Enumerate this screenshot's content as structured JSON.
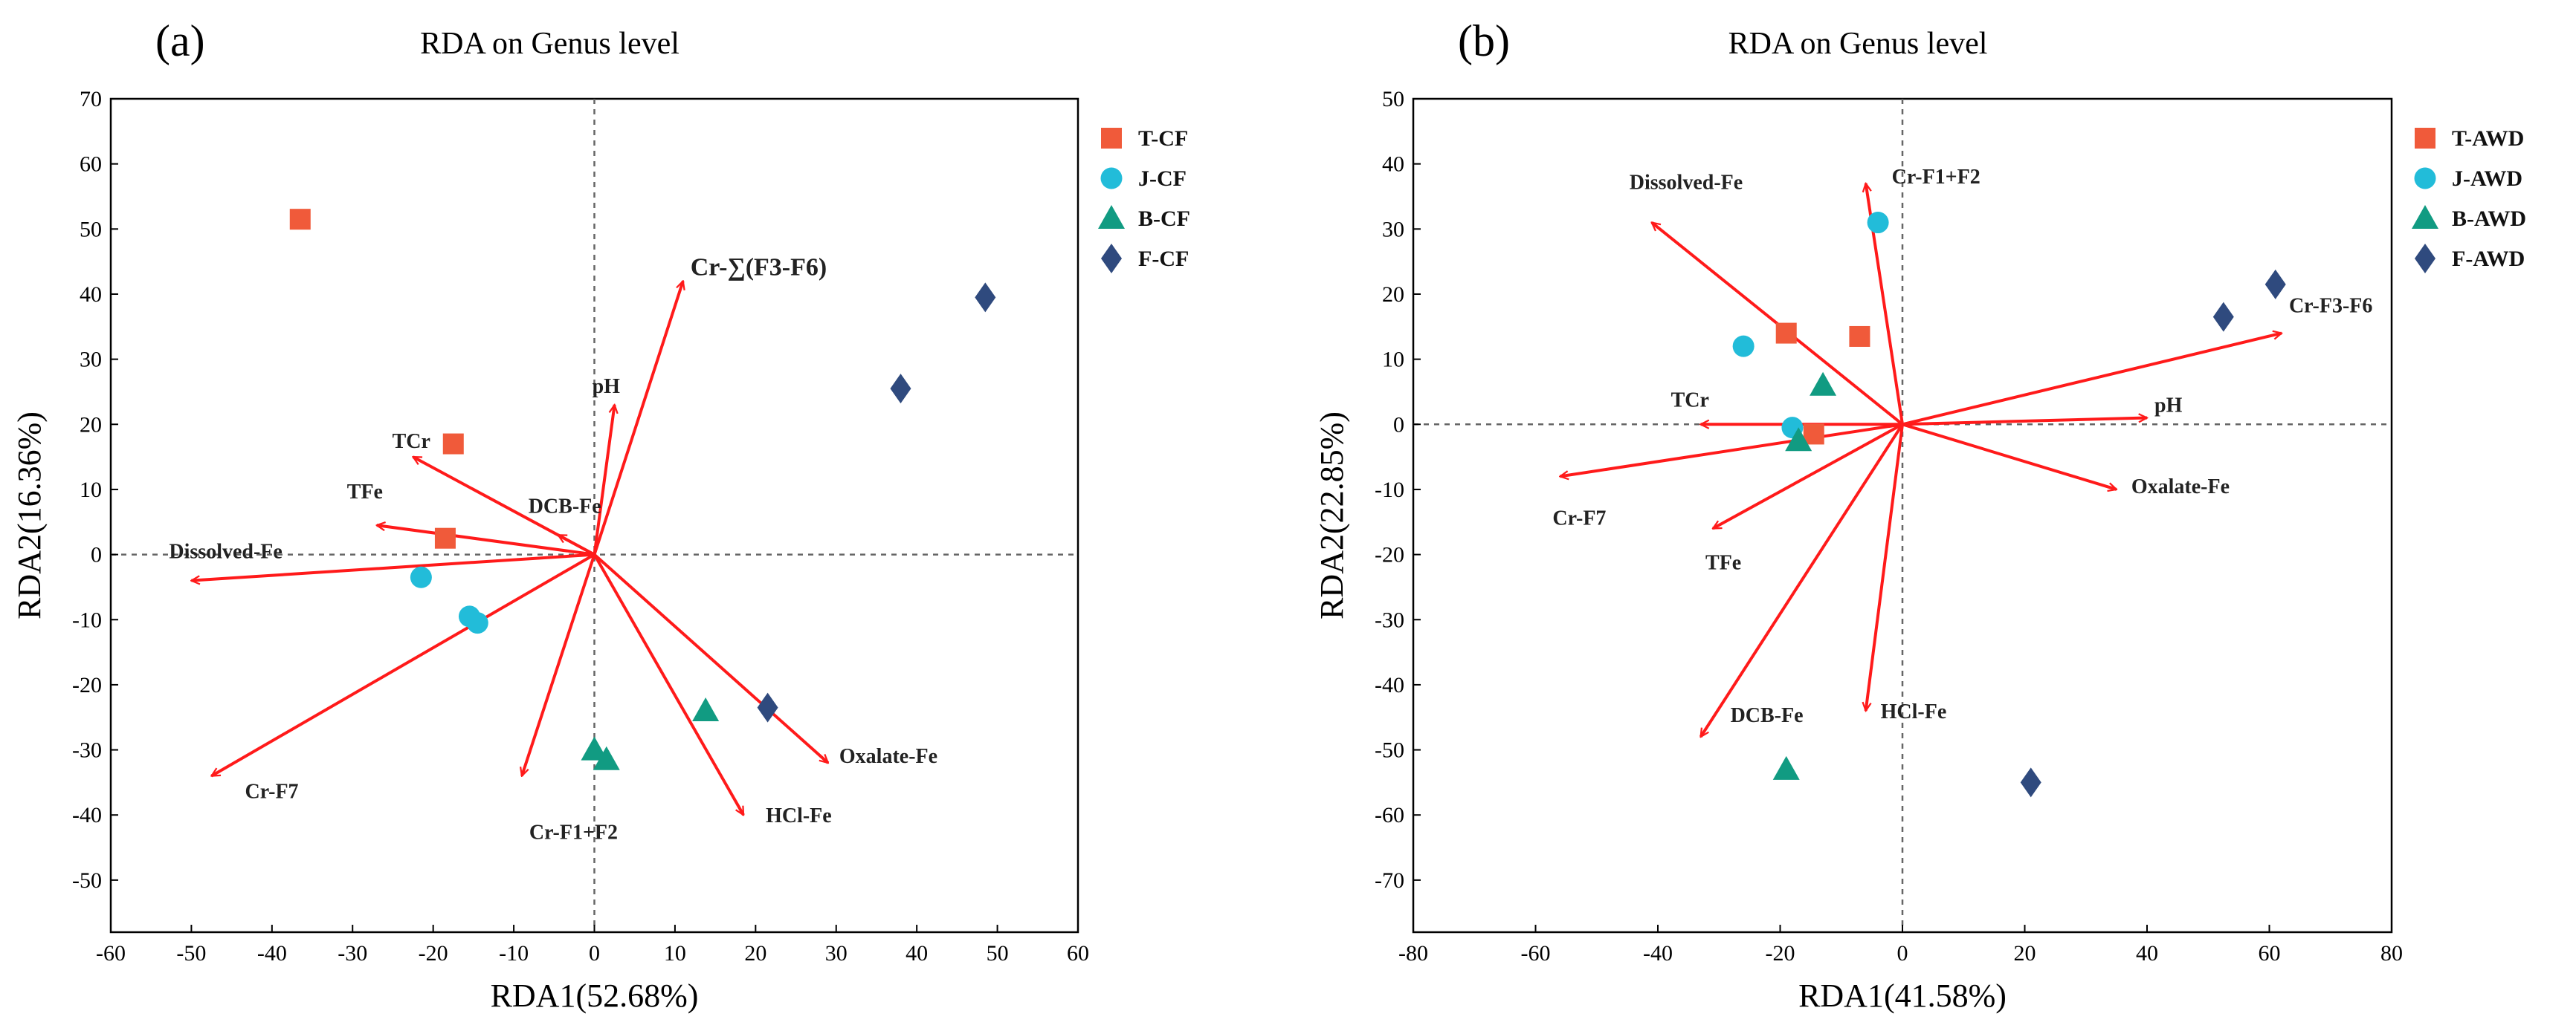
{
  "chart_data": [
    {
      "type": "scatter",
      "panel_label": "(a)",
      "title": "RDA on Genus level",
      "xlabel": "RDA1(52.68%)",
      "ylabel": "RDA2(16.36%)",
      "xlim": [
        -60,
        60
      ],
      "ylim": [
        -58,
        70
      ],
      "xticks": [
        -60,
        -50,
        -40,
        -30,
        -20,
        -10,
        0,
        10,
        20,
        30,
        40,
        50,
        60
      ],
      "yticks": [
        -50,
        -40,
        -30,
        -20,
        -10,
        0,
        10,
        20,
        30,
        40,
        50,
        60,
        70
      ],
      "series": [
        {
          "name": "T-CF",
          "marker": "square",
          "color": "#F05A3A",
          "points": [
            [
              -36.5,
              51.5
            ],
            [
              -17.5,
              17
            ],
            [
              -18.5,
              2.5
            ]
          ]
        },
        {
          "name": "J-CF",
          "marker": "circle",
          "color": "#22BCD9",
          "points": [
            [
              -21.5,
              -3.5
            ],
            [
              -15.5,
              -9.5
            ],
            [
              -14.5,
              -10.5
            ]
          ]
        },
        {
          "name": "B-CF",
          "marker": "triangle",
          "color": "#119B82",
          "points": [
            [
              0,
              -30
            ],
            [
              1.5,
              -31.5
            ],
            [
              13.8,
              -24
            ]
          ]
        },
        {
          "name": "F-CF",
          "marker": "diamond",
          "color": "#2F4A7E",
          "points": [
            [
              21.5,
              -23.5
            ],
            [
              38,
              25.5
            ],
            [
              48.5,
              39.5
            ]
          ]
        }
      ],
      "vectors": [
        {
          "name": "Cr-∑(F3-F6)",
          "x": 11,
          "y": 42
        },
        {
          "name": "pH",
          "x": 2.5,
          "y": 23
        },
        {
          "name": "TCr",
          "x": -22.5,
          "y": 15
        },
        {
          "name": "TFe",
          "x": -27,
          "y": 4.5
        },
        {
          "name": "DCB-Fe",
          "x": -4.5,
          "y": 3
        },
        {
          "name": "Dissolved-Fe",
          "x": -50,
          "y": -4
        },
        {
          "name": "Cr-F7",
          "x": -47.5,
          "y": -34
        },
        {
          "name": "Cr-F1+F2",
          "x": -9,
          "y": -34
        },
        {
          "name": "HCl-Fe",
          "x": 18.5,
          "y": -40
        },
        {
          "name": "Oxalate-Fe",
          "x": 29,
          "y": -32
        }
      ],
      "legend_position": "right"
    },
    {
      "type": "scatter",
      "panel_label": "(b)",
      "title": "RDA on Genus level",
      "xlabel": "RDA1(41.58%)",
      "ylabel": "RDA2(22.85%)",
      "xlim": [
        -80,
        80
      ],
      "ylim": [
        -78,
        50
      ],
      "xticks": [
        -80,
        -60,
        -40,
        -20,
        0,
        20,
        40,
        60,
        80
      ],
      "yticks": [
        -70,
        -60,
        -50,
        -40,
        -30,
        -20,
        -10,
        0,
        10,
        20,
        30,
        40,
        50
      ],
      "series": [
        {
          "name": "T-AWD",
          "marker": "square",
          "color": "#F05A3A",
          "points": [
            [
              -19,
              14
            ],
            [
              -7,
              13.5
            ],
            [
              -14.5,
              -1.5
            ]
          ]
        },
        {
          "name": "J-AWD",
          "marker": "circle",
          "color": "#22BCD9",
          "points": [
            [
              -4,
              31
            ],
            [
              -26,
              12
            ],
            [
              -18,
              -0.5
            ]
          ]
        },
        {
          "name": "B-AWD",
          "marker": "triangle",
          "color": "#119B82",
          "points": [
            [
              -13,
              6
            ],
            [
              -17,
              -2.5
            ],
            [
              -19,
              -53
            ]
          ]
        },
        {
          "name": "F-AWD",
          "marker": "diamond",
          "color": "#2F4A7E",
          "points": [
            [
              52.5,
              16.5
            ],
            [
              61,
              21.5
            ],
            [
              21,
              -55
            ]
          ]
        }
      ],
      "vectors": [
        {
          "name": "Cr-F1+F2",
          "x": -6,
          "y": 37
        },
        {
          "name": "Dissolved-Fe",
          "x": -41,
          "y": 31
        },
        {
          "name": "Cr-F3-F6",
          "x": 62,
          "y": 14
        },
        {
          "name": "pH",
          "x": 40,
          "y": 1
        },
        {
          "name": "TCr",
          "x": -33,
          "y": 0
        },
        {
          "name": "Oxalate-Fe",
          "x": 35,
          "y": -10
        },
        {
          "name": "Cr-F7",
          "x": -56,
          "y": -8
        },
        {
          "name": "TFe",
          "x": -31,
          "y": -16
        },
        {
          "name": "DCB-Fe",
          "x": -33,
          "y": -48
        },
        {
          "name": "HCl-Fe",
          "x": -6,
          "y": -44
        }
      ],
      "legend_position": "right"
    }
  ],
  "colors": {
    "arrow": "#FF1A1A",
    "axis": "#000000",
    "zero_line": "#666666"
  }
}
